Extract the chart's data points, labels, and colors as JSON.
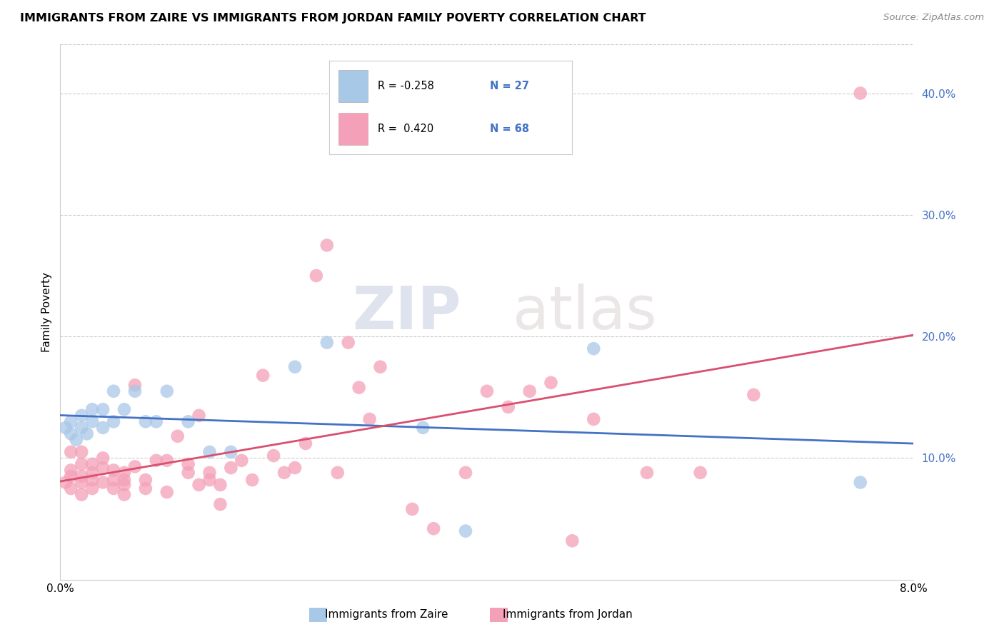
{
  "title": "IMMIGRANTS FROM ZAIRE VS IMMIGRANTS FROM JORDAN FAMILY POVERTY CORRELATION CHART",
  "source": "Source: ZipAtlas.com",
  "ylabel": "Family Poverty",
  "xmin": 0.0,
  "xmax": 0.08,
  "ymin": 0.0,
  "ymax": 0.44,
  "yticks": [
    0.1,
    0.2,
    0.3,
    0.4
  ],
  "ytick_labels": [
    "10.0%",
    "20.0%",
    "30.0%",
    "40.0%"
  ],
  "xticks": [
    0.0,
    0.02,
    0.04,
    0.06,
    0.08
  ],
  "xtick_labels": [
    "0.0%",
    "",
    "",
    "",
    "8.0%"
  ],
  "gridline_y": [
    0.1,
    0.2,
    0.3,
    0.4
  ],
  "zaire_color": "#a8c8e8",
  "jordan_color": "#f4a0b8",
  "zaire_line_color": "#4472c4",
  "jordan_line_color": "#d94f6e",
  "zaire_R": -0.258,
  "zaire_N": 27,
  "jordan_R": 0.42,
  "jordan_N": 68,
  "legend_label_zaire": "Immigrants from Zaire",
  "legend_label_jordan": "Immigrants from Jordan",
  "watermark_zip": "ZIP",
  "watermark_atlas": "atlas",
  "background_color": "#ffffff",
  "zaire_x": [
    0.0005,
    0.001,
    0.001,
    0.0015,
    0.002,
    0.002,
    0.0025,
    0.003,
    0.003,
    0.004,
    0.004,
    0.005,
    0.005,
    0.006,
    0.007,
    0.008,
    0.009,
    0.01,
    0.012,
    0.014,
    0.016,
    0.022,
    0.025,
    0.034,
    0.038,
    0.05,
    0.075
  ],
  "zaire_y": [
    0.125,
    0.12,
    0.13,
    0.115,
    0.125,
    0.135,
    0.12,
    0.13,
    0.14,
    0.125,
    0.14,
    0.13,
    0.155,
    0.14,
    0.155,
    0.13,
    0.13,
    0.155,
    0.13,
    0.105,
    0.105,
    0.175,
    0.195,
    0.125,
    0.04,
    0.19,
    0.08
  ],
  "jordan_x": [
    0.0005,
    0.001,
    0.001,
    0.001,
    0.001,
    0.002,
    0.002,
    0.002,
    0.002,
    0.002,
    0.003,
    0.003,
    0.003,
    0.003,
    0.004,
    0.004,
    0.004,
    0.005,
    0.005,
    0.005,
    0.006,
    0.006,
    0.006,
    0.006,
    0.007,
    0.007,
    0.008,
    0.008,
    0.009,
    0.01,
    0.01,
    0.011,
    0.012,
    0.012,
    0.013,
    0.013,
    0.014,
    0.014,
    0.015,
    0.015,
    0.016,
    0.017,
    0.018,
    0.019,
    0.02,
    0.021,
    0.022,
    0.023,
    0.024,
    0.025,
    0.026,
    0.027,
    0.028,
    0.029,
    0.03,
    0.033,
    0.035,
    0.038,
    0.04,
    0.042,
    0.044,
    0.046,
    0.048,
    0.05,
    0.055,
    0.06,
    0.065,
    0.075
  ],
  "jordan_y": [
    0.08,
    0.075,
    0.085,
    0.09,
    0.105,
    0.07,
    0.08,
    0.085,
    0.095,
    0.105,
    0.075,
    0.082,
    0.088,
    0.095,
    0.08,
    0.092,
    0.1,
    0.075,
    0.082,
    0.09,
    0.07,
    0.078,
    0.082,
    0.088,
    0.093,
    0.16,
    0.075,
    0.082,
    0.098,
    0.072,
    0.098,
    0.118,
    0.088,
    0.095,
    0.078,
    0.135,
    0.082,
    0.088,
    0.062,
    0.078,
    0.092,
    0.098,
    0.082,
    0.168,
    0.102,
    0.088,
    0.092,
    0.112,
    0.25,
    0.275,
    0.088,
    0.195,
    0.158,
    0.132,
    0.175,
    0.058,
    0.042,
    0.088,
    0.155,
    0.142,
    0.155,
    0.162,
    0.032,
    0.132,
    0.088,
    0.088,
    0.152,
    0.4
  ]
}
